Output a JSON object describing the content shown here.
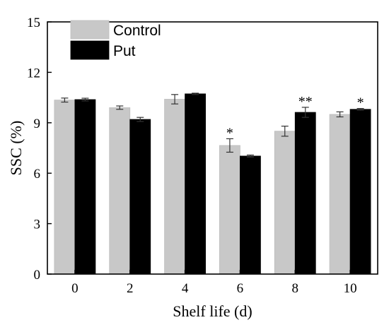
{
  "chart_data": {
    "type": "bar",
    "xlabel": "Shelf  life (d)",
    "ylabel": "SSC (%)",
    "ylim": [
      0,
      15
    ],
    "yticks": [
      0,
      3,
      6,
      9,
      12,
      15
    ],
    "categories": [
      "0",
      "2",
      "4",
      "6",
      "8",
      "10"
    ],
    "series": [
      {
        "name": "Control",
        "color": "#c8c8c8",
        "values": [
          10.35,
          9.9,
          10.4,
          7.65,
          8.5,
          9.5
        ],
        "errors": [
          0.12,
          0.1,
          0.28,
          0.4,
          0.3,
          0.15
        ],
        "annotations": [
          "",
          "",
          "",
          "*",
          "",
          ""
        ]
      },
      {
        "name": "Put",
        "color": "#000000",
        "values": [
          10.38,
          9.2,
          10.72,
          7.02,
          9.62,
          9.8
        ],
        "errors": [
          0.08,
          0.12,
          0.04,
          0.06,
          0.3,
          0.05
        ],
        "annotations": [
          "",
          "",
          "",
          "",
          "**",
          "*"
        ]
      }
    ],
    "legend_position": "top-left"
  }
}
